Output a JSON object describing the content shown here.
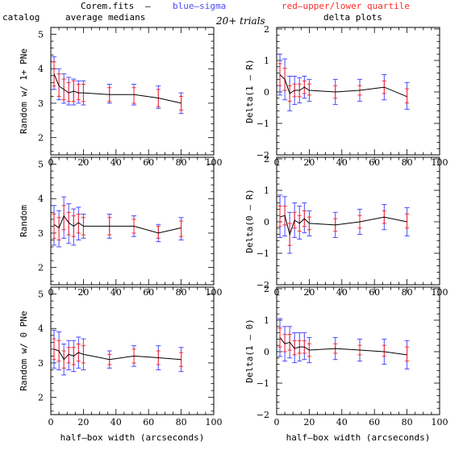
{
  "header": {
    "file": "Corem.fits",
    "dash": "–",
    "blue_label": "blue–sigma",
    "red_label": "red–upper/lower quartile",
    "trials": "20+ trials",
    "left_col": "catalog",
    "left_col2": "average medians",
    "right_col": "delta plots",
    "blue_color": "#4b4bff",
    "red_color": "#ff2a2a"
  },
  "xaxis_label": "half–box width (arcseconds)",
  "chart_data": [
    {
      "type": "line",
      "ylabel": "Random w/ 1+ PNe",
      "xlim": [
        0,
        100
      ],
      "ylim": [
        1.5,
        5.2
      ],
      "xticks": [
        "0",
        "20",
        "40",
        "60",
        "80",
        "100"
      ],
      "yticks": [
        "2",
        "3",
        "4",
        "5"
      ],
      "x": [
        2,
        5,
        8,
        11,
        14,
        17,
        20,
        36,
        51,
        66,
        80
      ],
      "y": [
        3.85,
        3.5,
        3.4,
        3.3,
        3.35,
        3.3,
        3.3,
        3.25,
        3.25,
        3.15,
        3.0
      ],
      "sigma": [
        [
          3.4,
          4.35
        ],
        [
          3.1,
          4.0
        ],
        [
          3.0,
          3.85
        ],
        [
          2.95,
          3.75
        ],
        [
          2.95,
          3.7
        ],
        [
          3.0,
          3.65
        ],
        [
          2.95,
          3.65
        ],
        [
          3.0,
          3.55
        ],
        [
          2.95,
          3.55
        ],
        [
          2.85,
          3.5
        ],
        [
          2.7,
          3.3
        ]
      ],
      "quartile": [
        [
          3.5,
          4.2
        ],
        [
          3.2,
          3.85
        ],
        [
          3.1,
          3.7
        ],
        [
          3.05,
          3.6
        ],
        [
          3.05,
          3.65
        ],
        [
          3.1,
          3.55
        ],
        [
          3.05,
          3.55
        ],
        [
          3.05,
          3.45
        ],
        [
          3.0,
          3.45
        ],
        [
          2.9,
          3.4
        ],
        [
          2.8,
          3.2
        ]
      ]
    },
    {
      "type": "line",
      "ylabel": "Random",
      "xlim": [
        0,
        100
      ],
      "ylim": [
        1.5,
        5.2
      ],
      "xticks": [
        "0",
        "20",
        "40",
        "60",
        "80",
        "100"
      ],
      "yticks": [
        "2",
        "3",
        "4",
        "5"
      ],
      "x": [
        2,
        5,
        8,
        11,
        14,
        17,
        20,
        36,
        51,
        66,
        80
      ],
      "y": [
        3.25,
        3.15,
        3.5,
        3.3,
        3.2,
        3.3,
        3.2,
        3.2,
        3.2,
        3.0,
        3.15
      ],
      "sigma": [
        [
          2.65,
          3.8
        ],
        [
          2.6,
          3.65
        ],
        [
          2.85,
          4.05
        ],
        [
          2.7,
          3.85
        ],
        [
          2.65,
          3.7
        ],
        [
          2.8,
          3.75
        ],
        [
          2.85,
          3.55
        ],
        [
          2.85,
          3.55
        ],
        [
          2.9,
          3.5
        ],
        [
          2.75,
          3.25
        ],
        [
          2.8,
          3.45
        ]
      ],
      "quartile": [
        [
          2.85,
          3.55
        ],
        [
          2.8,
          3.45
        ],
        [
          3.1,
          3.8
        ],
        [
          2.95,
          3.6
        ],
        [
          2.9,
          3.5
        ],
        [
          3.0,
          3.55
        ],
        [
          2.95,
          3.45
        ],
        [
          2.95,
          3.45
        ],
        [
          3.0,
          3.4
        ],
        [
          2.85,
          3.2
        ],
        [
          2.9,
          3.35
        ]
      ]
    },
    {
      "type": "line",
      "ylabel": "Random w/ 0 PNe",
      "xlim": [
        0,
        100
      ],
      "ylim": [
        1.5,
        5.2
      ],
      "xticks": [
        "0",
        "20",
        "40",
        "60",
        "80",
        "100"
      ],
      "yticks": [
        "2",
        "3",
        "4",
        "5"
      ],
      "x": [
        2,
        5,
        8,
        11,
        14,
        17,
        20,
        36,
        51,
        66,
        80
      ],
      "y": [
        3.4,
        3.35,
        3.1,
        3.25,
        3.2,
        3.3,
        3.25,
        3.1,
        3.2,
        3.15,
        3.1
      ],
      "sigma": [
        [
          2.85,
          3.95
        ],
        [
          2.8,
          3.9
        ],
        [
          2.65,
          3.55
        ],
        [
          2.8,
          3.65
        ],
        [
          2.75,
          3.65
        ],
        [
          2.85,
          3.75
        ],
        [
          2.8,
          3.7
        ],
        [
          2.85,
          3.35
        ],
        [
          2.9,
          3.5
        ],
        [
          2.8,
          3.5
        ],
        [
          2.75,
          3.45
        ]
      ],
      "quartile": [
        [
          3.1,
          3.7
        ],
        [
          3.05,
          3.65
        ],
        [
          2.85,
          3.35
        ],
        [
          3.0,
          3.45
        ],
        [
          2.95,
          3.45
        ],
        [
          3.05,
          3.55
        ],
        [
          3.0,
          3.5
        ],
        [
          2.95,
          3.25
        ],
        [
          3.0,
          3.4
        ],
        [
          2.95,
          3.35
        ],
        [
          2.9,
          3.3
        ]
      ]
    },
    {
      "type": "line",
      "ylabel": "Delta(1 – R)",
      "xlim": [
        0,
        100
      ],
      "ylim": [
        -2,
        2.05
      ],
      "xticks": [
        "0",
        "20",
        "40",
        "60",
        "80",
        "100"
      ],
      "yticks": [
        "−2",
        "−1",
        "0",
        "1",
        "2"
      ],
      "x": [
        2,
        5,
        8,
        11,
        14,
        17,
        20,
        36,
        51,
        66,
        80
      ],
      "y": [
        0.55,
        0.4,
        -0.05,
        0.05,
        0.05,
        0.15,
        0.05,
        0.0,
        0.05,
        0.15,
        -0.15
      ],
      "sigma": [
        [
          -0.1,
          1.2
        ],
        [
          -0.25,
          1.05
        ],
        [
          -0.6,
          0.5
        ],
        [
          -0.4,
          0.5
        ],
        [
          -0.35,
          0.45
        ],
        [
          -0.2,
          0.5
        ],
        [
          -0.3,
          0.4
        ],
        [
          -0.4,
          0.4
        ],
        [
          -0.3,
          0.4
        ],
        [
          -0.25,
          0.55
        ],
        [
          -0.55,
          0.3
        ]
      ],
      "quartile": [
        [
          0.2,
          0.9
        ],
        [
          0.05,
          0.75
        ],
        [
          -0.3,
          0.2
        ],
        [
          -0.15,
          0.25
        ],
        [
          -0.15,
          0.25
        ],
        [
          -0.05,
          0.35
        ],
        [
          -0.1,
          0.25
        ],
        [
          -0.2,
          0.2
        ],
        [
          -0.1,
          0.2
        ],
        [
          -0.05,
          0.35
        ],
        [
          -0.35,
          0.1
        ]
      ]
    },
    {
      "type": "line",
      "ylabel": "Delta(0 – R)",
      "xlim": [
        0,
        100
      ],
      "ylim": [
        -2,
        2.05
      ],
      "xticks": [
        "0",
        "20",
        "40",
        "60",
        "80",
        "100"
      ],
      "yticks": [
        "−2",
        "−1",
        "0",
        "1",
        "2"
      ],
      "x": [
        2,
        5,
        8,
        11,
        14,
        17,
        20,
        36,
        51,
        66,
        80
      ],
      "y": [
        0.15,
        0.2,
        -0.4,
        0.05,
        -0.05,
        0.1,
        -0.05,
        -0.1,
        0.0,
        0.15,
        0.0
      ],
      "sigma": [
        [
          -0.5,
          0.85
        ],
        [
          -0.45,
          0.8
        ],
        [
          -1.0,
          0.3
        ],
        [
          -0.5,
          0.6
        ],
        [
          -0.55,
          0.5
        ],
        [
          -0.35,
          0.6
        ],
        [
          -0.45,
          0.35
        ],
        [
          -0.5,
          0.3
        ],
        [
          -0.4,
          0.4
        ],
        [
          -0.25,
          0.55
        ],
        [
          -0.45,
          0.45
        ]
      ],
      "quartile": [
        [
          -0.15,
          0.5
        ],
        [
          -0.1,
          0.5
        ],
        [
          -0.75,
          -0.05
        ],
        [
          -0.2,
          0.3
        ],
        [
          -0.3,
          0.2
        ],
        [
          -0.15,
          0.35
        ],
        [
          -0.25,
          0.15
        ],
        [
          -0.3,
          0.1
        ],
        [
          -0.2,
          0.2
        ],
        [
          -0.05,
          0.35
        ],
        [
          -0.2,
          0.25
        ]
      ]
    },
    {
      "type": "line",
      "ylabel": "Delta(1 – 0)",
      "xlim": [
        0,
        100
      ],
      "ylim": [
        -2,
        2.05
      ],
      "xticks": [
        "0",
        "20",
        "40",
        "60",
        "80",
        "100"
      ],
      "yticks": [
        "−2",
        "−1",
        "0",
        "1",
        "2"
      ],
      "x": [
        2,
        5,
        8,
        11,
        14,
        17,
        20,
        36,
        51,
        66,
        80
      ],
      "y": [
        0.45,
        0.25,
        0.3,
        0.1,
        0.15,
        0.15,
        0.05,
        0.1,
        0.05,
        0.0,
        -0.1
      ],
      "sigma": [
        [
          -0.15,
          1.05
        ],
        [
          -0.3,
          0.8
        ],
        [
          -0.2,
          0.8
        ],
        [
          -0.35,
          0.6
        ],
        [
          -0.3,
          0.6
        ],
        [
          -0.25,
          0.6
        ],
        [
          -0.35,
          0.45
        ],
        [
          -0.25,
          0.45
        ],
        [
          -0.3,
          0.4
        ],
        [
          -0.4,
          0.4
        ],
        [
          -0.55,
          0.35
        ]
      ],
      "quartile": [
        [
          0.15,
          0.75
        ],
        [
          0.0,
          0.55
        ],
        [
          0.05,
          0.55
        ],
        [
          -0.1,
          0.35
        ],
        [
          -0.05,
          0.35
        ],
        [
          -0.05,
          0.35
        ],
        [
          -0.15,
          0.25
        ],
        [
          -0.05,
          0.25
        ],
        [
          -0.1,
          0.2
        ],
        [
          -0.15,
          0.2
        ],
        [
          -0.3,
          0.15
        ]
      ]
    }
  ]
}
